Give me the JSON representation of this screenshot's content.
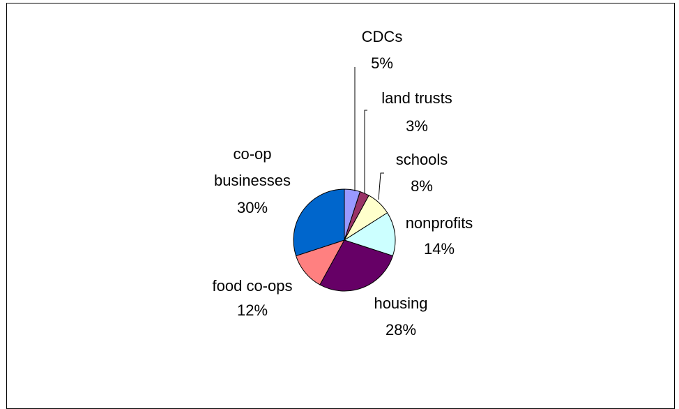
{
  "chart_data": {
    "type": "pie",
    "title": "",
    "slices": [
      {
        "label": "CDCs",
        "pct_label": "5%",
        "value": 5,
        "color": "#9999ff"
      },
      {
        "label": "land trusts",
        "pct_label": "3%",
        "value": 3,
        "color": "#993366"
      },
      {
        "label": "schools",
        "pct_label": "8%",
        "value": 8,
        "color": "#ffffcc"
      },
      {
        "label": "nonprofits",
        "pct_label": "14%",
        "value": 14,
        "color": "#ccffff"
      },
      {
        "label": "housing",
        "pct_label": "28%",
        "value": 28,
        "color": "#660066"
      },
      {
        "label": "food co-ops",
        "pct_label": "12%",
        "value": 12,
        "color": "#ff8080"
      },
      {
        "label": "co-op businesses",
        "pct_label": "30%",
        "value": 30,
        "color": "#0066cc"
      }
    ],
    "legend": "none",
    "data_labels": "category name and percentage"
  }
}
